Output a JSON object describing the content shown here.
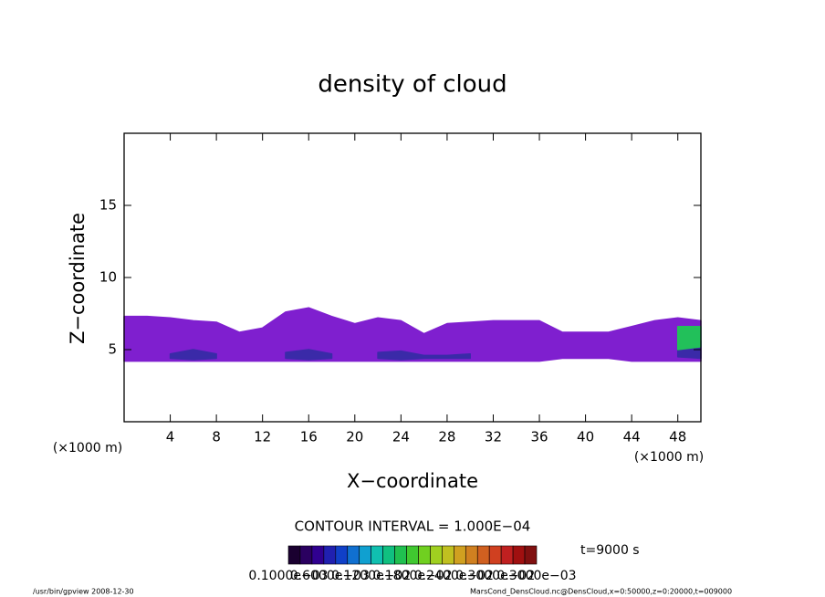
{
  "chart_data": {
    "type": "contour",
    "title": "density of cloud",
    "x_label": "X−coordinate",
    "y_label": "Z−coordinate",
    "x_unit": "(×1000 m)",
    "y_unit": "(×1000 m)",
    "xlim": [
      0,
      50
    ],
    "ylim": [
      0,
      20
    ],
    "xticks": [
      4,
      8,
      12,
      16,
      20,
      24,
      28,
      32,
      36,
      40,
      44,
      48
    ],
    "yticks": [
      5,
      10,
      15
    ],
    "x": [
      0,
      2,
      4,
      6,
      8,
      10,
      12,
      14,
      16,
      18,
      20,
      22,
      24,
      26,
      28,
      30,
      32,
      34,
      36,
      38,
      40,
      42,
      44,
      46,
      48,
      50
    ],
    "series": [
      {
        "color": "#7f1fcf",
        "top": [
          7.3,
          7.3,
          7.2,
          7.0,
          6.9,
          6.2,
          6.5,
          7.6,
          7.9,
          7.3,
          6.8,
          7.2,
          7.0,
          6.1,
          6.8,
          6.9,
          7.0,
          7.0,
          7.0,
          6.2,
          6.2,
          6.2,
          6.6,
          7.0,
          7.2,
          7.0
        ],
        "base": [
          4.2,
          4.2,
          4.2,
          4.2,
          4.2,
          4.2,
          4.2,
          4.2,
          4.2,
          4.2,
          4.2,
          4.2,
          4.2,
          4.2,
          4.2,
          4.2,
          4.2,
          4.2,
          4.2,
          4.4,
          4.4,
          4.4,
          4.2,
          4.2,
          4.2,
          4.2
        ]
      },
      {
        "color": "#3a2aa8",
        "top": [
          null,
          null,
          4.7,
          5.0,
          4.7,
          null,
          null,
          4.8,
          5.0,
          4.7,
          null,
          4.8,
          4.9,
          4.6,
          4.6,
          4.7,
          null,
          null,
          null,
          null,
          null,
          null,
          null,
          null,
          5.4,
          5.6
        ],
        "base": [
          null,
          null,
          4.4,
          4.3,
          4.4,
          null,
          null,
          4.4,
          4.3,
          4.4,
          null,
          4.4,
          4.3,
          4.4,
          4.4,
          4.4,
          null,
          null,
          null,
          null,
          null,
          null,
          null,
          null,
          4.5,
          4.4
        ]
      },
      {
        "color": "#22c05a",
        "top": [
          null,
          null,
          null,
          null,
          null,
          null,
          null,
          null,
          null,
          null,
          null,
          null,
          null,
          null,
          null,
          null,
          null,
          null,
          null,
          null,
          null,
          null,
          null,
          null,
          6.6,
          6.6
        ],
        "base": [
          null,
          null,
          null,
          null,
          null,
          null,
          null,
          null,
          null,
          null,
          null,
          null,
          null,
          null,
          null,
          null,
          null,
          null,
          null,
          null,
          null,
          null,
          null,
          null,
          5.0,
          5.2
        ]
      }
    ],
    "contour_interval": "CONTOUR INTERVAL = 1.000E−04",
    "colorbar_colors": [
      "#1a0030",
      "#2a0060",
      "#300090",
      "#2020b0",
      "#1040c8",
      "#1070d0",
      "#10a0d0",
      "#10c0b0",
      "#10c080",
      "#20c050",
      "#40c830",
      "#70d020",
      "#a0d020",
      "#c0c020",
      "#d0a020",
      "#d08020",
      "#d06020",
      "#d04020",
      "#c02020",
      "#a01010",
      "#801010"
    ],
    "colorbar_labels": [
      "0.1000e−03",
      "0.6000e−03",
      "0.1200e−02",
      "0.1800e−02",
      "0.2400e−02",
      "0.3000e−02",
      "0.3000e−03"
    ],
    "time_label": "t=9000 s",
    "footer_left": "/usr/bin/gpview   2008-12-30",
    "footer_right": "MarsCond_DensCloud.nc@DensCloud,x=0:50000,z=0:20000,t=009000"
  }
}
